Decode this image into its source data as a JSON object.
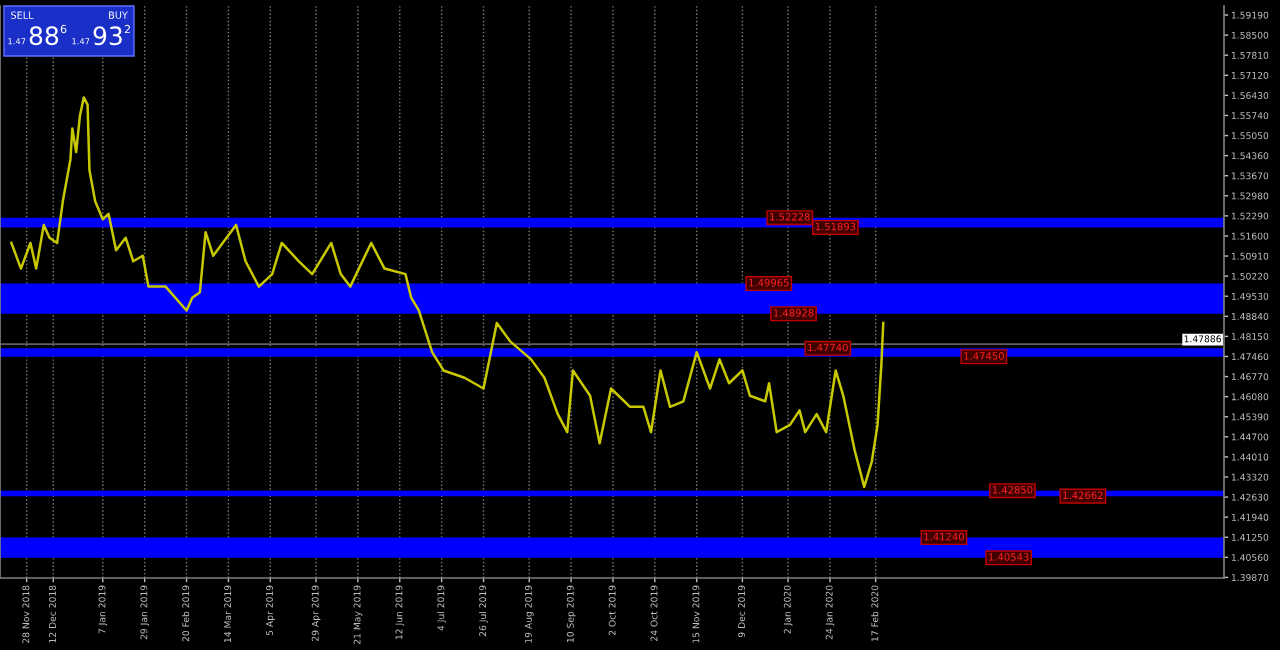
{
  "chart_data": {
    "type": "line",
    "x": [
      "2018-11-20",
      "2018-11-25",
      "2018-11-30",
      "2018-12-03",
      "2018-12-07",
      "2018-12-10",
      "2018-12-14",
      "2018-12-17",
      "2018-12-21",
      "2018-12-22",
      "2018-12-24",
      "2018-12-26",
      "2018-12-28",
      "2018-12-30",
      "2018-12-31",
      "2019-01-03",
      "2019-01-07",
      "2019-01-10",
      "2019-01-14",
      "2019-01-19",
      "2019-01-23",
      "2019-01-28",
      "2019-01-31",
      "2019-02-09",
      "2019-02-20",
      "2019-02-23",
      "2019-02-27",
      "2019-03-02",
      "2019-03-06",
      "2019-03-18",
      "2019-03-23",
      "2019-03-30",
      "2019-04-06",
      "2019-04-11",
      "2019-04-20",
      "2019-04-27",
      "2019-05-07",
      "2019-05-12",
      "2019-05-17",
      "2019-05-28",
      "2019-06-04",
      "2019-06-15",
      "2019-06-18",
      "2019-06-22",
      "2019-06-29",
      "2019-07-05",
      "2019-07-16",
      "2019-07-26",
      "2019-08-02",
      "2019-08-09",
      "2019-08-20",
      "2019-08-27",
      "2019-09-03",
      "2019-09-08",
      "2019-09-11",
      "2019-09-20",
      "2019-09-25",
      "2019-10-01",
      "2019-10-11",
      "2019-10-18",
      "2019-10-22",
      "2019-10-27",
      "2019-11-01",
      "2019-11-08",
      "2019-11-15",
      "2019-11-22",
      "2019-11-27",
      "2019-12-02",
      "2019-12-09",
      "2019-12-13",
      "2019-12-21",
      "2019-12-23",
      "2019-12-27",
      "2020-01-03",
      "2020-01-08",
      "2020-01-11",
      "2020-01-17",
      "2020-01-22",
      "2020-01-27",
      "2020-01-31",
      "2020-02-06",
      "2020-02-11",
      "2020-02-15",
      "2020-02-18",
      "2020-02-20",
      "2020-02-21"
    ],
    "series": [
      {
        "color": "#c8c800",
        "values": [
          1.5136,
          1.5048,
          1.5136,
          1.5048,
          1.5198,
          1.5154,
          1.5136,
          1.5279,
          1.5423,
          1.5529,
          1.5448,
          1.5573,
          1.5636,
          1.5611,
          1.5386,
          1.5279,
          1.5217,
          1.5236,
          1.5111,
          1.5154,
          1.5073,
          1.5092,
          1.4986,
          1.4986,
          1.4904,
          1.4948,
          1.4967,
          1.5173,
          1.5092,
          1.5198,
          1.5073,
          1.4986,
          1.5029,
          1.5136,
          1.5073,
          1.5029,
          1.5136,
          1.5029,
          1.4986,
          1.5136,
          1.5048,
          1.5029,
          1.4948,
          1.4904,
          1.4761,
          1.4698,
          1.4673,
          1.4636,
          1.4861,
          1.4798,
          1.4736,
          1.4673,
          1.4548,
          1.4486,
          1.4698,
          1.4611,
          1.4448,
          1.4636,
          1.4573,
          1.4573,
          1.4486,
          1.4698,
          1.4573,
          1.4592,
          1.4761,
          1.4636,
          1.4736,
          1.4654,
          1.4698,
          1.4611,
          1.4592,
          1.4654,
          1.4486,
          1.4511,
          1.4561,
          1.4486,
          1.4548,
          1.4486,
          1.4698,
          1.4611,
          1.4423,
          1.4298,
          1.4386,
          1.4511,
          1.4717,
          1.4861
        ]
      }
    ],
    "xlim": [
      "2018-11-14",
      "2020-08-18"
    ],
    "xticks": [
      {
        "value": "2018-11-28",
        "label": "28 Nov 2018"
      },
      {
        "value": "2018-12-12",
        "label": "12 Dec 2018"
      },
      {
        "value": "2019-01-07",
        "label": "7 Jan 2019"
      },
      {
        "value": "2019-01-29",
        "label": "29 Jan 2019"
      },
      {
        "value": "2019-02-20",
        "label": "20 Feb 2019"
      },
      {
        "value": "2019-03-14",
        "label": "14 Mar 2019"
      },
      {
        "value": "2019-04-05",
        "label": "5 Apr 2019"
      },
      {
        "value": "2019-04-29",
        "label": "29 Apr 2019"
      },
      {
        "value": "2019-05-21",
        "label": "21 May 2019"
      },
      {
        "value": "2019-06-12",
        "label": "12 Jun 2019"
      },
      {
        "value": "2019-07-04",
        "label": "4 Jul 2019"
      },
      {
        "value": "2019-07-26",
        "label": "26 Jul 2019"
      },
      {
        "value": "2019-08-19",
        "label": "19 Aug 2019"
      },
      {
        "value": "2019-09-10",
        "label": "10 Sep 2019"
      },
      {
        "value": "2019-10-02",
        "label": "2 Oct 2019"
      },
      {
        "value": "2019-10-24",
        "label": "24 Oct 2019"
      },
      {
        "value": "2019-11-15",
        "label": "15 Nov 2019"
      },
      {
        "value": "2019-12-09",
        "label": "9 Dec 2019"
      },
      {
        "value": "2020-01-02",
        "label": "2 Jan 2020"
      },
      {
        "value": "2020-01-24",
        "label": "24 Jan 2020"
      },
      {
        "value": "2020-02-17",
        "label": "17 Feb 2020"
      }
    ],
    "ylim": [
      1.3985,
      1.595
    ],
    "yticks": [
      {
        "value": 1.3987,
        "label": "1.39870"
      },
      {
        "value": 1.4056,
        "label": "1.40560"
      },
      {
        "value": 1.4125,
        "label": "1.41250"
      },
      {
        "value": 1.4194,
        "label": "1.41940"
      },
      {
        "value": 1.4263,
        "label": "1.42630"
      },
      {
        "value": 1.4332,
        "label": "1.43320"
      },
      {
        "value": 1.4401,
        "label": "1.44010"
      },
      {
        "value": 1.447,
        "label": "1.44700"
      },
      {
        "value": 1.4539,
        "label": "1.45390"
      },
      {
        "value": 1.4608,
        "label": "1.46080"
      },
      {
        "value": 1.4677,
        "label": "1.46770"
      },
      {
        "value": 1.4746,
        "label": "1.47460"
      },
      {
        "value": 1.4815,
        "label": "1.48150"
      },
      {
        "value": 1.4884,
        "label": "1.48840"
      },
      {
        "value": 1.4953,
        "label": "1.49530"
      },
      {
        "value": 1.5022,
        "label": "1.50220"
      },
      {
        "value": 1.5091,
        "label": "1.50910"
      },
      {
        "value": 1.516,
        "label": "1.51600"
      },
      {
        "value": 1.5229,
        "label": "1.52290"
      },
      {
        "value": 1.5298,
        "label": "1.52980"
      },
      {
        "value": 1.5367,
        "label": "1.53670"
      },
      {
        "value": 1.5436,
        "label": "1.54360"
      },
      {
        "value": 1.5505,
        "label": "1.55050"
      },
      {
        "value": 1.5574,
        "label": "1.55740"
      },
      {
        "value": 1.5643,
        "label": "1.56430"
      },
      {
        "value": 1.5712,
        "label": "1.57120"
      },
      {
        "value": 1.5781,
        "label": "1.57810"
      },
      {
        "value": 1.585,
        "label": "1.58500"
      },
      {
        "value": 1.5919,
        "label": "1.59190"
      }
    ],
    "grid": "x",
    "bands": [
      {
        "axis": "y",
        "from": 1.51893,
        "to": 1.52228,
        "color": "#0000ff"
      },
      {
        "axis": "y",
        "from": 1.48928,
        "to": 1.49965,
        "color": "#0000ff"
      },
      {
        "axis": "y",
        "from": 1.4745,
        "to": 1.4774,
        "color": "#0000ff"
      },
      {
        "axis": "y",
        "from": 1.42662,
        "to": 1.4285,
        "color": "#0000ff"
      },
      {
        "axis": "y",
        "from": 1.40543,
        "to": 1.4124,
        "color": "#0000ff"
      }
    ],
    "ref_lines": [
      {
        "axis": "y",
        "value": 1.47886,
        "label": "1.47886",
        "color": "#606060"
      }
    ],
    "annotations": [
      "SELL",
      "BUY",
      "1.47",
      "88",
      "6",
      "1.47",
      "93",
      "2",
      {
        "text": "1.52228",
        "x": "2019-12-23",
        "y": 1.52228
      },
      {
        "text": "1.51893",
        "x": "2020-01-16",
        "y": 1.51893
      },
      {
        "text": "1.49965",
        "x": "2019-12-12",
        "y": 1.49965
      },
      {
        "text": "1.48928",
        "x": "2019-12-25",
        "y": 1.48928
      },
      {
        "text": "1.47740",
        "x": "2020-01-12",
        "y": 1.4774
      },
      {
        "text": "1.47450",
        "x": "2020-04-03",
        "y": 1.4745
      },
      {
        "text": "1.42850",
        "x": "2020-04-18",
        "y": 1.4285
      },
      {
        "text": "1.42662",
        "x": "2020-05-25",
        "y": 1.42662
      },
      {
        "text": "1.41240",
        "x": "2020-03-13",
        "y": 1.4124
      },
      {
        "text": "1.40543",
        "x": "2020-04-16",
        "y": 1.40543
      }
    ]
  }
}
